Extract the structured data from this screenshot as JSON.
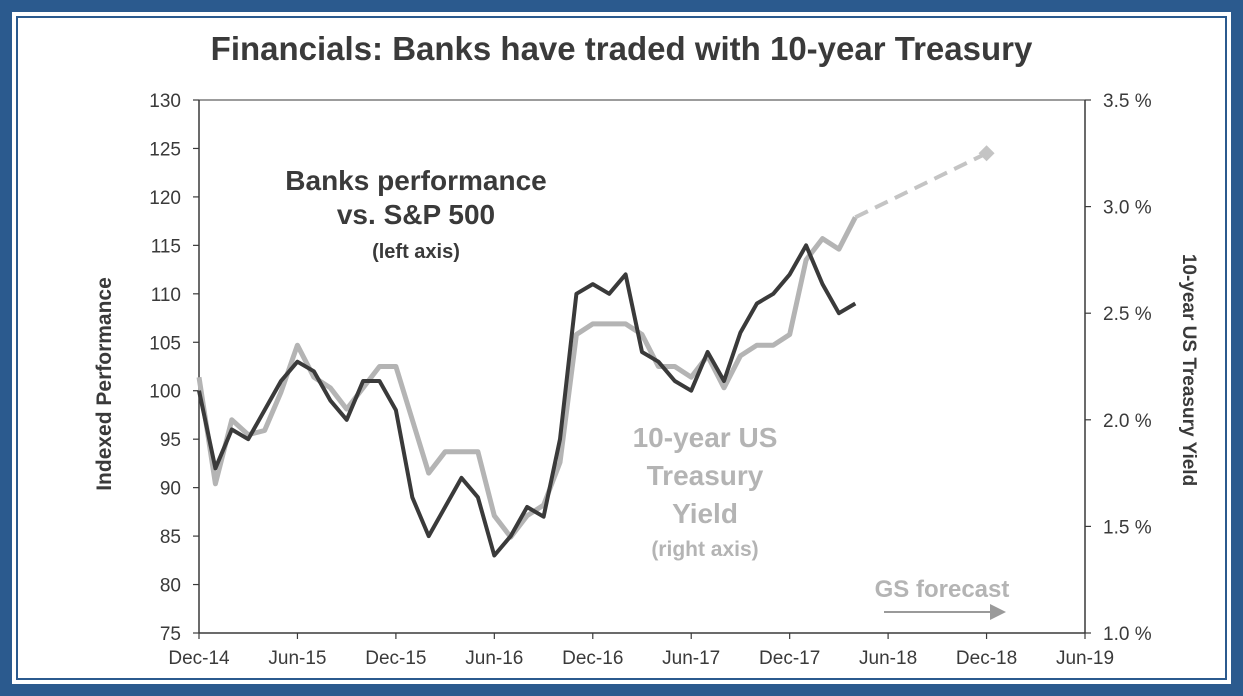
{
  "chart_data": {
    "type": "line",
    "title": "Financials: Banks have traded with 10-year Treasury",
    "ylabel_left": "Indexed Performance",
    "ylabel_right": "10-year US Treasury Yield",
    "x_ticks": [
      "Dec-14",
      "Jun-15",
      "Dec-15",
      "Jun-16",
      "Dec-16",
      "Jun-17",
      "Dec-17",
      "Jun-18",
      "Dec-18",
      "Jun-19"
    ],
    "y_left_ticks": [
      "130",
      "125",
      "120",
      "115",
      "110",
      "105",
      "100",
      "95",
      "90",
      "85",
      "80",
      "75"
    ],
    "y_right_ticks": [
      "3.5 %",
      "3.0 %",
      "2.5 %",
      "2.0 %",
      "1.5 %",
      "1.0 %"
    ],
    "ylim_left": [
      75,
      130
    ],
    "ylim_right": [
      1.0,
      3.5
    ],
    "grid": false,
    "annotations": {
      "banks_line1": "Banks performance",
      "banks_line2": "vs. S&P 500",
      "banks_line3": "(left axis)",
      "treasury_line1": "10-year US",
      "treasury_line2": "Treasury",
      "treasury_line3": "Yield",
      "treasury_line4": "(right axis)",
      "forecast": "GS forecast"
    },
    "colors": {
      "banks": "#3a3a3a",
      "treasury": "#b4b4b4",
      "forecast": "#c4c4c4",
      "text": "#3a3a3a",
      "frame": "#2b5a8e"
    },
    "series": [
      {
        "key": "banks",
        "axis": "left",
        "x": [
          "2014-12",
          "2015-01",
          "2015-02",
          "2015-03",
          "2015-04",
          "2015-05",
          "2015-06",
          "2015-07",
          "2015-08",
          "2015-09",
          "2015-10",
          "2015-11",
          "2015-12",
          "2016-01",
          "2016-02",
          "2016-03",
          "2016-04",
          "2016-05",
          "2016-06",
          "2016-07",
          "2016-08",
          "2016-09",
          "2016-10",
          "2016-11",
          "2016-12",
          "2017-01",
          "2017-02",
          "2017-03",
          "2017-04",
          "2017-05",
          "2017-06",
          "2017-07",
          "2017-08",
          "2017-09",
          "2017-10",
          "2017-11",
          "2017-12",
          "2018-01",
          "2018-02",
          "2018-03",
          "2018-04"
        ],
        "values": [
          100,
          92,
          96,
          95,
          98,
          101,
          103,
          102,
          99,
          97,
          101,
          101,
          98,
          89,
          85,
          88,
          91,
          89,
          83,
          85,
          88,
          87,
          95,
          110,
          111,
          110,
          112,
          104,
          103,
          101,
          100,
          104,
          101,
          106,
          109,
          110,
          112,
          115,
          111,
          108,
          109
        ]
      },
      {
        "key": "treasury",
        "axis": "right",
        "x": [
          "2014-12",
          "2015-01",
          "2015-02",
          "2015-03",
          "2015-04",
          "2015-05",
          "2015-06",
          "2015-07",
          "2015-08",
          "2015-09",
          "2015-10",
          "2015-11",
          "2015-12",
          "2016-01",
          "2016-02",
          "2016-03",
          "2016-04",
          "2016-05",
          "2016-06",
          "2016-07",
          "2016-08",
          "2016-09",
          "2016-10",
          "2016-11",
          "2016-12",
          "2017-01",
          "2017-02",
          "2017-03",
          "2017-04",
          "2017-05",
          "2017-06",
          "2017-07",
          "2017-08",
          "2017-09",
          "2017-10",
          "2017-11",
          "2017-12",
          "2018-01",
          "2018-02",
          "2018-03",
          "2018-04"
        ],
        "values": [
          2.2,
          1.7,
          2.0,
          1.93,
          1.95,
          2.13,
          2.35,
          2.2,
          2.15,
          2.05,
          2.15,
          2.25,
          2.25,
          2.0,
          1.75,
          1.85,
          1.85,
          1.85,
          1.55,
          1.45,
          1.55,
          1.6,
          1.8,
          2.4,
          2.45,
          2.45,
          2.45,
          2.4,
          2.25,
          2.25,
          2.2,
          2.3,
          2.15,
          2.3,
          2.35,
          2.35,
          2.4,
          2.75,
          2.85,
          2.8,
          2.95
        ]
      },
      {
        "key": "forecast",
        "axis": "right",
        "x": [
          "2018-04",
          "2018-12"
        ],
        "values": [
          2.95,
          3.25
        ]
      }
    ]
  }
}
